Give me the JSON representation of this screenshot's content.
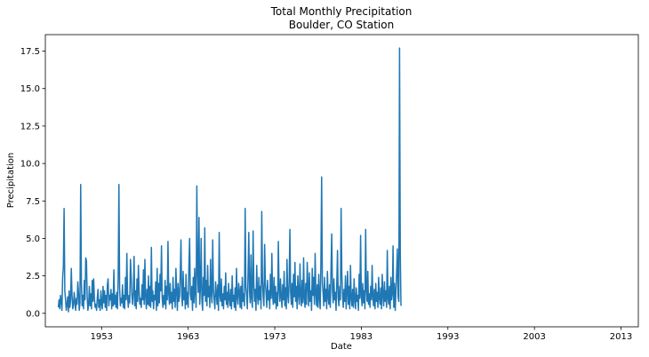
{
  "chart_data": {
    "type": "line",
    "title": "Total Monthly Precipitation",
    "subtitle": "Boulder, CO Station",
    "xlabel": "Date",
    "ylabel": "Precipitation",
    "xlim": [
      1946.5,
      2015.0
    ],
    "ylim": [
      -0.9,
      18.6
    ],
    "x_ticks": [
      1953,
      1963,
      1973,
      1983,
      1993,
      2003,
      2013
    ],
    "y_ticks": [
      0.0,
      2.5,
      5.0,
      7.5,
      10.0,
      12.5,
      15.0,
      17.5
    ],
    "grid": false,
    "legend": "none",
    "series_color": "#1f77b4",
    "x_start": 1948.0,
    "x_step": 0.0833333,
    "series": [
      {
        "values": [
          0.4,
          0.9,
          0.3,
          1.2,
          0.8,
          0.2,
          2.4,
          3.1,
          7.0,
          1.5,
          0.9,
          0.2,
          0.6,
          1.1,
          0.1,
          1.5,
          0.4,
          0.9,
          3.0,
          1.2,
          0.3,
          0.5,
          1.4,
          0.8,
          0.2,
          1.0,
          0.6,
          2.1,
          1.4,
          0.2,
          0.7,
          8.6,
          2.0,
          0.5,
          1.2,
          0.3,
          2.2,
          0.9,
          3.7,
          3.5,
          1.1,
          0.2,
          0.6,
          1.8,
          0.5,
          1.3,
          0.3,
          2.2,
          0.8,
          2.3,
          1.0,
          0.4,
          0.6,
          0.2,
          1.0,
          1.6,
          0.4,
          0.9,
          0.2,
          1.5,
          0.6,
          0.3,
          1.8,
          0.7,
          1.5,
          0.4,
          1.2,
          0.2,
          1.9,
          2.3,
          0.5,
          1.2,
          0.9,
          1.6,
          0.3,
          1.3,
          0.5,
          2.9,
          0.6,
          1.2,
          0.4,
          1.4,
          0.3,
          2.5,
          8.6,
          1.6,
          0.5,
          1.0,
          0.7,
          1.9,
          0.4,
          1.2,
          0.3,
          2.4,
          0.9,
          4.0,
          1.1,
          0.4,
          1.2,
          0.7,
          3.6,
          2.5,
          1.2,
          0.6,
          1.4,
          3.8,
          0.5,
          1.5,
          0.3,
          2.3,
          0.8,
          3.2,
          1.4,
          0.6,
          1.0,
          0.4,
          1.9,
          0.9,
          2.9,
          0.6,
          3.6,
          1.1,
          0.3,
          1.6,
          0.6,
          2.5,
          0.5,
          1.8,
          0.4,
          4.4,
          0.8,
          1.5,
          0.3,
          1.2,
          0.9,
          2.1,
          0.2,
          3.0,
          0.5,
          2.0,
          0.7,
          2.6,
          1.5,
          4.5,
          1.0,
          0.4,
          1.2,
          0.6,
          2.2,
          0.3,
          1.8,
          0.9,
          4.8,
          1.3,
          0.6,
          2.0,
          0.7,
          1.4,
          0.3,
          2.4,
          0.8,
          1.6,
          0.4,
          3.0,
          1.5,
          0.2,
          2.0,
          0.8,
          1.1,
          2.5,
          4.9,
          1.2,
          0.5,
          2.8,
          0.9,
          1.7,
          0.3,
          2.6,
          0.6,
          1.4,
          0.4,
          3.2,
          5.0,
          1.3,
          0.9,
          1.8,
          0.2,
          2.4,
          0.7,
          3.0,
          1.4,
          0.4,
          8.5,
          2.8,
          1.4,
          6.4,
          0.6,
          1.8,
          5.0,
          0.9,
          0.2,
          2.4,
          1.2,
          5.7,
          0.8,
          2.2,
          0.5,
          3.2,
          1.1,
          1.8,
          0.4,
          3.6,
          1.3,
          0.7,
          4.9,
          1.6,
          0.9,
          0.3,
          2.1,
          1.4,
          0.6,
          1.9,
          0.2,
          5.4,
          1.2,
          0.8,
          2.3,
          0.5,
          1.3,
          0.3,
          1.8,
          0.9,
          2.7,
          0.6,
          1.4,
          0.4,
          2.0,
          1.0,
          0.5,
          1.6,
          0.3,
          2.5,
          0.8,
          1.2,
          0.4,
          1.7,
          0.2,
          3.0,
          1.1,
          0.6,
          2.0,
          1.5,
          0.4,
          1.8,
          0.3,
          2.4,
          0.8,
          1.3,
          0.5,
          7.0,
          1.8,
          1.2,
          0.3,
          2.6,
          5.4,
          1.5,
          0.7,
          3.9,
          1.0,
          0.4,
          5.5,
          2.0,
          0.8,
          1.6,
          0.2,
          3.2,
          1.2,
          0.6,
          2.4,
          0.9,
          1.8,
          0.3,
          6.8,
          2.2,
          1.1,
          0.5,
          4.6,
          2.0,
          1.3,
          0.4,
          2.2,
          0.9,
          1.5,
          0.3,
          2.6,
          1.0,
          4.0,
          1.2,
          0.6,
          2.4,
          0.7,
          1.8,
          0.3,
          1.4,
          0.5,
          4.8,
          1.6,
          0.8,
          2.3,
          1.1,
          0.4,
          1.9,
          0.9,
          2.8,
          0.5,
          1.7,
          0.3,
          3.6,
          1.2,
          0.7,
          2.2,
          5.6,
          1.4,
          0.6,
          2.0,
          0.4,
          2.6,
          1.1,
          3.4,
          0.8,
          1.8,
          0.3,
          2.5,
          1.3,
          0.6,
          3.3,
          1.2,
          0.5,
          2.2,
          0.7,
          3.7,
          1.0,
          0.4,
          2.0,
          0.6,
          3.4,
          1.8,
          0.5,
          2.7,
          0.8,
          1.5,
          0.2,
          3.0,
          1.2,
          2.4,
          0.6,
          4.0,
          1.3,
          0.5,
          1.9,
          0.4,
          2.6,
          1.0,
          0.3,
          3.5,
          9.1,
          2.0,
          1.4,
          0.5,
          2.4,
          0.8,
          1.6,
          0.3,
          2.8,
          1.1,
          0.6,
          1.9,
          0.4,
          3.0,
          5.3,
          1.5,
          0.7,
          2.3,
          0.9,
          1.4,
          0.2,
          2.0,
          4.2,
          1.0,
          0.5,
          1.8,
          0.9,
          7.0,
          2.6,
          1.2,
          0.4,
          1.6,
          0.8,
          2.5,
          0.3,
          1.4,
          2.8,
          0.6,
          1.8,
          0.3,
          3.2,
          1.0,
          0.5,
          1.6,
          0.4,
          2.3,
          0.9,
          0.3,
          1.7,
          0.8,
          1.2,
          0.2,
          2.6,
          1.0,
          5.2,
          1.2,
          0.5,
          2.0,
          0.7,
          1.5,
          0.3,
          5.6,
          1.6,
          0.8,
          2.8,
          0.6,
          1.3,
          0.4,
          1.8,
          0.9,
          3.2,
          1.1,
          0.5,
          1.6,
          0.3,
          2.0,
          0.8,
          1.4,
          0.4,
          2.4,
          1.0,
          0.6,
          1.7,
          0.3,
          2.6,
          1.2,
          0.5,
          2.1,
          0.8,
          1.5,
          0.4,
          4.2,
          1.0,
          0.6,
          1.8,
          0.3,
          2.4,
          0.9,
          1.3,
          4.5,
          0.4,
          2.0,
          0.2,
          1.5,
          2.8,
          4.3,
          1.1,
          0.8,
          17.7,
          4.0,
          0.5
        ]
      }
    ]
  }
}
